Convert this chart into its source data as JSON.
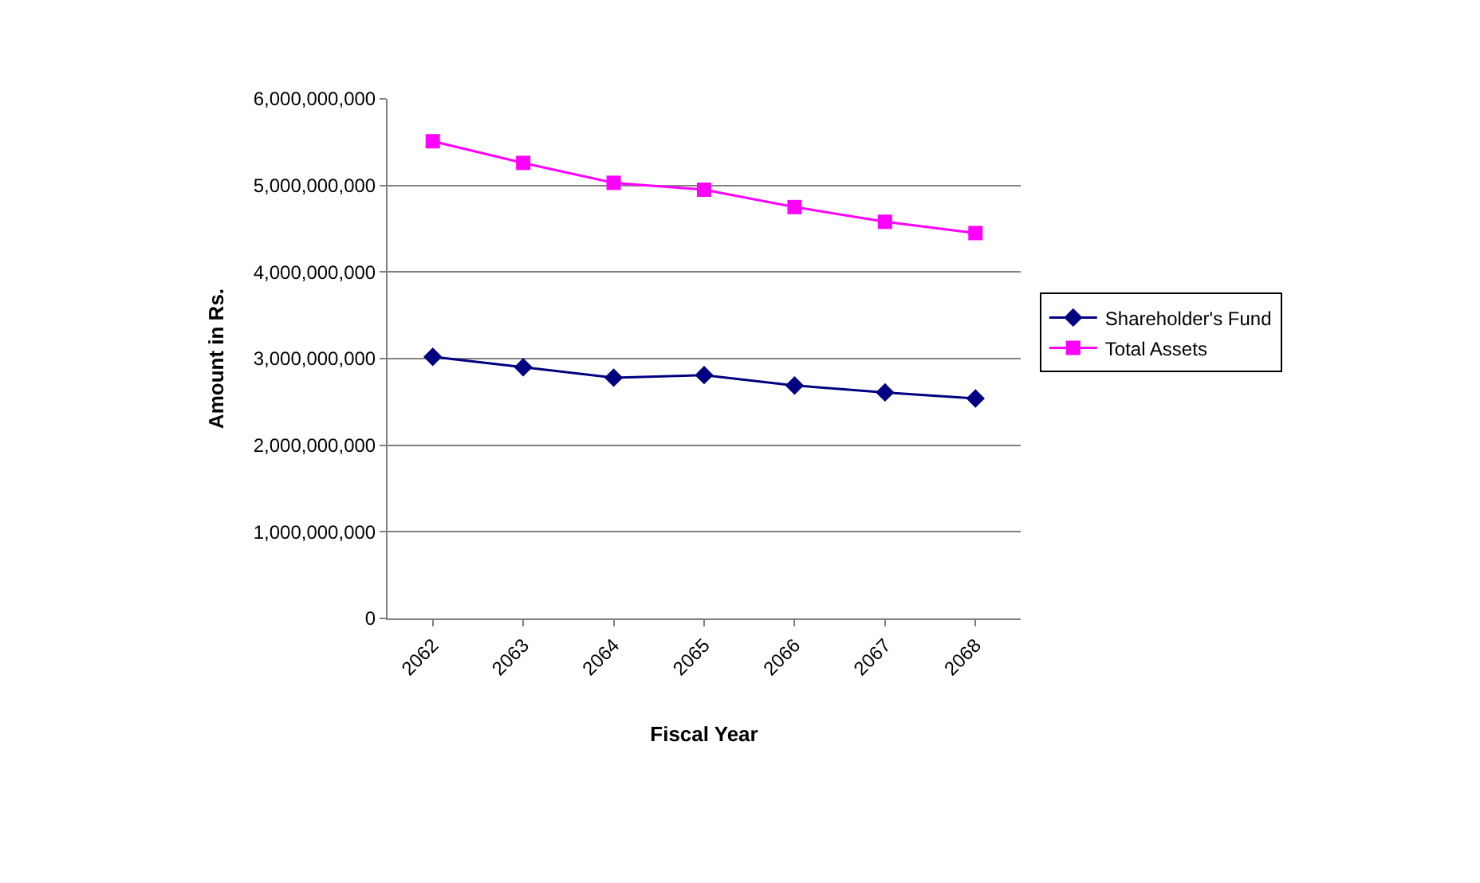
{
  "chart_data": {
    "type": "line",
    "xlabel": "Fiscal Year",
    "ylabel": "Amount in Rs.",
    "categories": [
      "2062",
      "2063",
      "2064",
      "2065",
      "2066",
      "2067",
      "2068"
    ],
    "series": [
      {
        "name": "Shareholder's Fund",
        "color": "#000080",
        "marker": "diamond",
        "values": [
          3020000000,
          2900000000,
          2780000000,
          2810000000,
          2690000000,
          2610000000,
          2540000000
        ]
      },
      {
        "name": "Total Assets",
        "color": "#ff00ff",
        "marker": "square",
        "values": [
          5510000000,
          5260000000,
          5030000000,
          4950000000,
          4750000000,
          4580000000,
          4450000000
        ]
      }
    ],
    "ylim": [
      0,
      6000000000
    ],
    "yticks": [
      {
        "value": 0,
        "label": "0"
      },
      {
        "value": 1000000000,
        "label": "1,000,000,000"
      },
      {
        "value": 2000000000,
        "label": "2,000,000,000"
      },
      {
        "value": 3000000000,
        "label": "3,000,000,000"
      },
      {
        "value": 4000000000,
        "label": "4,000,000,000"
      },
      {
        "value": 5000000000,
        "label": "5,000,000,000"
      },
      {
        "value": 6000000000,
        "label": "6,000,000,000"
      }
    ],
    "grid": "y",
    "legend": "right",
    "line_style": "solid"
  }
}
